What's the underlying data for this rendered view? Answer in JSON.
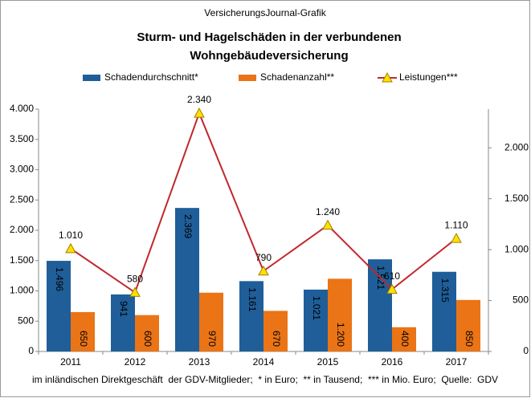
{
  "chart_data": {
    "type": "bar",
    "header": "VersicherungsJournal-Grafik",
    "title": [
      "Sturm- und Hagelschäden  in der verbundenen",
      "Wohngebäudeversicherung"
    ],
    "note": "im inländischen Direktgeschäft  der GDV-Mitglieder;  * in Euro;  ** in Tausend;  *** in Mio. Euro;  Quelle:  GDV",
    "categories": [
      "2011",
      "2012",
      "2013",
      "2014",
      "2015",
      "2016",
      "2017"
    ],
    "series": [
      {
        "name": "Schadendurchschnitt*",
        "type": "bar",
        "color": "#1f5e99",
        "values": [
          1496,
          941,
          2369,
          1161,
          1021,
          1521,
          1315
        ],
        "value_labels": [
          "1.496",
          "941",
          "2.369",
          "1.161",
          "1.021",
          "1.521",
          "1.315"
        ]
      },
      {
        "name": "Schadenanzahl**",
        "type": "bar",
        "color": "#ea7416",
        "values": [
          650,
          600,
          970,
          670,
          1200,
          400,
          850
        ],
        "value_labels": [
          "650",
          "600",
          "970",
          "670",
          "1.200",
          "400",
          "850"
        ]
      },
      {
        "name": "Leistungen***",
        "type": "line",
        "axis": "y2",
        "color": "#c0282d",
        "marker_color": "#ffe000",
        "values": [
          1010,
          580,
          2340,
          790,
          1240,
          610,
          1110
        ],
        "value_labels": [
          "1.010",
          "580",
          "2.340",
          "790",
          "1.240",
          "610",
          "1.110"
        ]
      }
    ],
    "ylim": [
      0,
      4000
    ],
    "yticks": [
      0,
      500,
      {
        "value": 1000,
        "label": "1.000"
      },
      {
        "value": 1500,
        "label": "1.500"
      },
      {
        "value": 2000,
        "label": "2.000"
      },
      {
        "value": 2500,
        "label": "2.500"
      },
      {
        "value": 3000,
        "label": "3.000"
      },
      {
        "value": 3500,
        "label": "3.500"
      },
      {
        "value": 4000,
        "label": "4.000"
      }
    ],
    "y2lim": [
      0,
      2380
    ],
    "y2ticks": [
      0,
      500,
      {
        "value": 1000,
        "label": "1.000"
      },
      {
        "value": 1500,
        "label": "1.500"
      },
      {
        "value": 2000,
        "label": "2.000"
      }
    ]
  }
}
